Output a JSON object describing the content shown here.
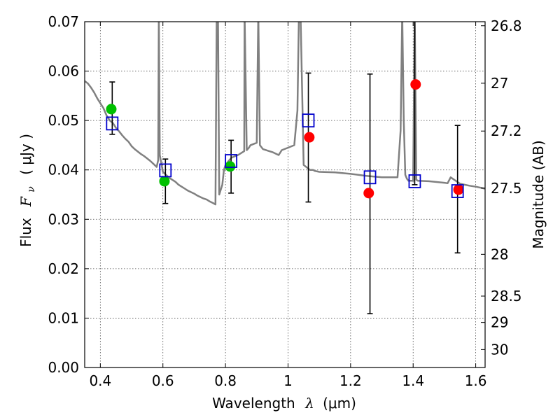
{
  "chart_data": {
    "type": "scatter",
    "xlabel_text": "Wavelength",
    "xlabel_symbol": "λ",
    "xlabel_unit": "(μm)",
    "ylabel_text": "Flux",
    "ylabel_symbol": "F",
    "ylabel_subscript": "ν",
    "ylabel_unit": "( μJy )",
    "y2label": "Magnitude (AB)",
    "xlim": [
      0.35,
      1.63
    ],
    "ylim": [
      0.0,
      0.07
    ],
    "grid": true,
    "xticks": [
      0.4,
      0.6,
      0.8,
      1.0,
      1.2,
      1.4,
      1.6
    ],
    "xtick_labels": [
      "0.4",
      "0.6",
      "0.8",
      "1",
      "1.2",
      "1.4",
      "1.6"
    ],
    "yticks": [
      0.0,
      0.01,
      0.02,
      0.03,
      0.04,
      0.05,
      0.06,
      0.07
    ],
    "ytick_labels": [
      "0.00",
      "0.01",
      "0.02",
      "0.03",
      "0.04",
      "0.05",
      "0.06",
      "0.07"
    ],
    "y2ticks": [
      26.8,
      27.0,
      27.2,
      27.5,
      28.0,
      28.5,
      29.0,
      30.0
    ],
    "y2tick_labels": [
      "26.8",
      "27",
      "27.2",
      "27.5",
      "28",
      "28.5",
      "29",
      "30"
    ],
    "series": [
      {
        "kind": "line",
        "color": "#808080",
        "x": [
          0.35,
          0.36,
          0.37,
          0.38,
          0.39,
          0.4,
          0.41,
          0.42,
          0.43,
          0.44,
          0.45,
          0.46,
          0.47,
          0.48,
          0.49,
          0.5,
          0.51,
          0.52,
          0.53,
          0.54,
          0.55,
          0.56,
          0.57,
          0.58,
          0.585,
          0.587,
          0.59,
          0.6,
          0.61,
          0.62,
          0.63,
          0.64,
          0.65,
          0.66,
          0.67,
          0.68,
          0.69,
          0.7,
          0.71,
          0.72,
          0.73,
          0.74,
          0.75,
          0.76,
          0.768,
          0.772,
          0.776,
          0.78,
          0.79,
          0.795,
          0.8,
          0.81,
          0.82,
          0.84,
          0.86,
          0.861,
          0.868,
          0.875,
          0.88,
          0.9,
          0.905,
          0.91,
          0.92,
          0.95,
          0.97,
          0.98,
          1.0,
          1.02,
          1.03,
          1.035,
          1.04,
          1.05,
          1.07,
          1.08,
          1.085,
          1.1,
          1.15,
          1.2,
          1.25,
          1.3,
          1.35,
          1.36,
          1.365,
          1.37,
          1.375,
          1.38,
          1.385,
          1.4,
          1.405,
          1.41,
          1.415,
          1.45,
          1.5,
          1.51,
          1.52,
          1.55,
          1.58,
          1.6,
          1.63
        ],
        "y": [
          0.058,
          0.0575,
          0.0567,
          0.0557,
          0.0545,
          0.0535,
          0.0525,
          0.051,
          0.05,
          0.0495,
          0.0485,
          0.0478,
          0.047,
          0.0463,
          0.0457,
          0.0448,
          0.0442,
          0.0437,
          0.0432,
          0.0428,
          0.0423,
          0.0418,
          0.0412,
          0.0406,
          0.042,
          0.072,
          0.043,
          0.0396,
          0.039,
          0.0384,
          0.038,
          0.0376,
          0.037,
          0.0366,
          0.0362,
          0.0358,
          0.0355,
          0.0352,
          0.0348,
          0.0345,
          0.0342,
          0.034,
          0.0336,
          0.0333,
          0.033,
          0.072,
          0.072,
          0.035,
          0.037,
          0.04,
          0.041,
          0.0418,
          0.0425,
          0.043,
          0.0438,
          0.072,
          0.044,
          0.0445,
          0.045,
          0.0455,
          0.072,
          0.045,
          0.0442,
          0.0436,
          0.043,
          0.044,
          0.0445,
          0.045,
          0.052,
          0.072,
          0.072,
          0.041,
          0.04,
          0.04,
          0.0398,
          0.0396,
          0.0395,
          0.0392,
          0.0388,
          0.0385,
          0.0385,
          0.048,
          0.072,
          0.05,
          0.039,
          0.0382,
          0.0378,
          0.0378,
          0.072,
          0.038,
          0.0378,
          0.0377,
          0.0374,
          0.0373,
          0.0385,
          0.0372,
          0.0368,
          0.0366,
          0.0362
        ]
      },
      {
        "kind": "points",
        "marker": "circle",
        "color": "#00c000",
        "x": [
          0.435,
          0.605,
          0.815
        ],
        "y": [
          0.0523,
          0.0377,
          0.0407
        ]
      },
      {
        "kind": "points",
        "marker": "circle",
        "color": "#ff0000",
        "x": [
          1.068,
          1.258,
          1.408,
          1.545
        ],
        "y": [
          0.0466,
          0.0353,
          0.0573,
          0.036
        ]
      },
      {
        "kind": "points",
        "marker": "open-square",
        "color": "#0000cc",
        "x": [
          0.438,
          0.608,
          0.818,
          1.065,
          1.262,
          1.405,
          1.542
        ],
        "y": [
          0.0494,
          0.0399,
          0.0418,
          0.05,
          0.0385,
          0.0377,
          0.0357
        ]
      }
    ],
    "errorbars": [
      {
        "x": 0.438,
        "y": 0.0494,
        "lower": 0.0472,
        "upper": 0.0578
      },
      {
        "x": 0.608,
        "y": 0.0399,
        "lower": 0.0332,
        "upper": 0.0422
      },
      {
        "x": 0.818,
        "y": 0.0418,
        "lower": 0.0353,
        "upper": 0.046
      },
      {
        "x": 1.065,
        "y": 0.05,
        "lower": 0.0335,
        "upper": 0.0596
      },
      {
        "x": 1.262,
        "y": 0.0385,
        "lower": 0.0109,
        "upper": 0.0594
      },
      {
        "x": 1.405,
        "y": 0.0377,
        "lower": 0.037,
        "upper": 0.072
      },
      {
        "x": 1.542,
        "y": 0.0357,
        "lower": 0.0232,
        "upper": 0.049
      }
    ]
  }
}
